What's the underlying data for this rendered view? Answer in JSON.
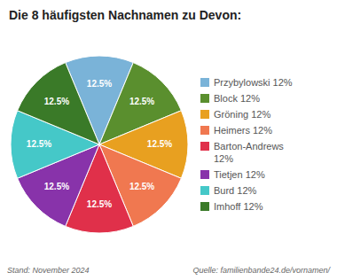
{
  "chart_data": {
    "type": "pie",
    "title": "Die 8 häufigsten Nachnamen zu Devon:",
    "categories": [
      "Przybylowski 12%",
      "Block 12%",
      "Gröning 12%",
      "Heimers 12%",
      "Barton-Andrews\n12%",
      "Tietjen 12%",
      "Burd 12%",
      "Imhoff 12%"
    ],
    "values": [
      12.5,
      12.5,
      12.5,
      12.5,
      12.5,
      12.5,
      12.5,
      12.5
    ],
    "value_labels": [
      "12.5%",
      "12.5%",
      "12.5%",
      "12.5%",
      "12.5%",
      "12.5%",
      "12.5%",
      "12.5%"
    ],
    "colors": [
      "#7ab3d8",
      "#5a8f2e",
      "#e8a020",
      "#f07850",
      "#e0304a",
      "#8833aa",
      "#45c8c8",
      "#3a7a28"
    ],
    "data_labels": true,
    "legend": "right",
    "annotations": [
      "Stand: November 2024",
      "Quelle: familienbande24.de/vornamen/"
    ]
  }
}
